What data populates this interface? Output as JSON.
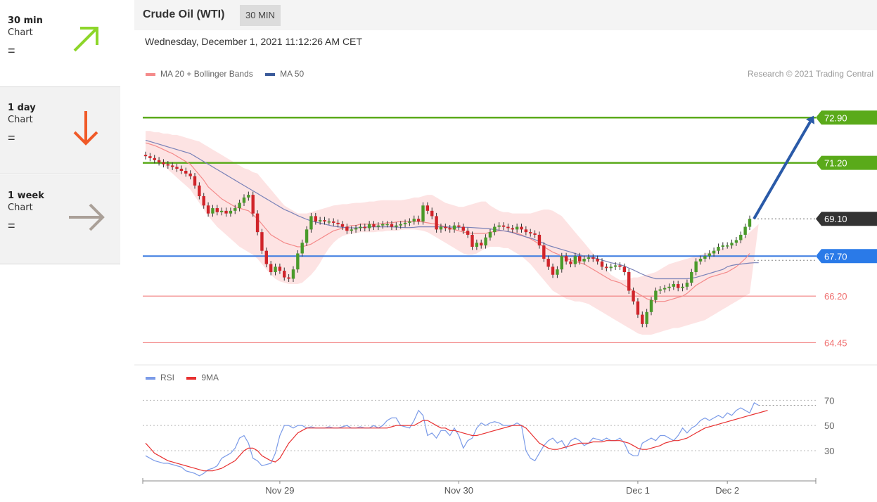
{
  "timeframes": [
    {
      "title": "30 min",
      "subtitle": "Chart",
      "sign": "=",
      "arrow": "up-right",
      "color": "#8dd62a"
    },
    {
      "title": "1 day",
      "subtitle": "Chart",
      "sign": "=",
      "arrow": "down",
      "color": "#f05a28"
    },
    {
      "title": "1 week",
      "subtitle": "Chart",
      "sign": "=",
      "arrow": "right",
      "color": "#aaa098"
    }
  ],
  "header": {
    "title": "Crude Oil (WTI)",
    "timeframe": "30 MIN"
  },
  "datetime": "Wednesday, December 1, 2021 11:12:26 AM CET",
  "credit": "Research © 2021 Trading Central",
  "colors": {
    "up": "#4a9a2a",
    "down": "#d0242a",
    "band": "#fde0e0",
    "ma20": "#f48a8a",
    "ma50": "#7a82b8",
    "resistance": "#5aaa1a",
    "pivot": "#3a7ae0",
    "support": "#f07070",
    "rsi": "#7b9be8",
    "rsi_ma": "#e83030"
  },
  "chart_data": [
    {
      "type": "candlestick",
      "title": "Crude Oil (WTI)",
      "legend": [
        {
          "name": "MA 20 + Bollinger Bands",
          "color": "#f48a8a"
        },
        {
          "name": "MA 50",
          "color": "#3a5a9a"
        }
      ],
      "ylim": [
        63.8,
        74.2
      ],
      "x_ticks": [
        {
          "label": "Nov 29",
          "index": 30
        },
        {
          "label": "Nov 30",
          "index": 70
        },
        {
          "label": "Dec 1",
          "index": 110
        },
        {
          "label": "Dec 2",
          "index": 130
        }
      ],
      "close": [
        71.45,
        71.38,
        71.3,
        71.22,
        71.15,
        71.1,
        71.05,
        70.98,
        70.9,
        70.8,
        70.7,
        70.35,
        69.95,
        69.6,
        69.3,
        69.5,
        69.35,
        69.4,
        69.3,
        69.4,
        69.5,
        69.7,
        69.9,
        70.0,
        69.3,
        68.6,
        67.9,
        67.4,
        67.1,
        67.3,
        67.15,
        66.9,
        66.85,
        67.2,
        67.8,
        68.2,
        68.7,
        69.2,
        69.0,
        69.05,
        69.0,
        69.0,
        68.95,
        68.9,
        68.8,
        68.65,
        68.7,
        68.75,
        68.8,
        68.75,
        68.9,
        68.8,
        68.85,
        68.9,
        68.9,
        68.8,
        68.85,
        68.9,
        68.95,
        69.0,
        69.1,
        69.0,
        69.6,
        69.4,
        69.2,
        68.7,
        68.8,
        68.75,
        68.7,
        68.85,
        68.8,
        68.65,
        68.5,
        68.05,
        68.2,
        68.1,
        68.4,
        68.6,
        68.8,
        68.85,
        68.8,
        68.75,
        68.7,
        68.8,
        68.7,
        68.6,
        68.55,
        68.5,
        68.1,
        67.6,
        67.3,
        67.0,
        67.2,
        67.7,
        67.5,
        67.4,
        67.7,
        67.5,
        67.6,
        67.65,
        67.6,
        67.5,
        67.3,
        67.25,
        67.3,
        67.35,
        67.3,
        67.1,
        66.4,
        66.0,
        65.5,
        65.15,
        65.6,
        66.05,
        66.4,
        66.45,
        66.5,
        66.55,
        66.65,
        66.5,
        66.55,
        66.7,
        67.1,
        67.5,
        67.6,
        67.7,
        67.8,
        67.9,
        68.05,
        68.1,
        68.1,
        68.2,
        68.3,
        68.5,
        68.8,
        69.1
      ],
      "ma20": [
        71.95,
        71.9,
        71.85,
        71.78,
        71.7,
        71.62,
        71.55,
        71.45,
        71.35,
        71.25,
        71.15,
        70.95,
        70.75,
        70.55,
        70.3,
        70.15,
        70.0,
        69.85,
        69.75,
        69.65,
        69.55,
        69.5,
        69.45,
        69.4,
        69.25,
        69.1,
        68.9,
        68.7,
        68.5,
        68.4,
        68.3,
        68.2,
        68.15,
        68.1,
        68.05,
        68.05,
        68.1,
        68.15,
        68.25,
        68.35,
        68.45,
        68.55,
        68.65,
        68.7,
        68.75,
        68.8,
        68.85,
        68.85,
        68.9,
        68.9,
        68.9,
        68.9,
        68.9,
        68.92,
        68.95,
        68.95,
        68.98,
        69.0,
        69.0,
        69.0,
        69.0,
        69.0,
        68.98,
        68.95,
        68.92,
        68.9,
        68.85,
        68.8,
        68.75,
        68.7,
        68.65,
        68.6,
        68.58,
        68.55,
        68.55,
        68.55,
        68.55,
        68.6,
        68.62,
        68.65,
        68.65,
        68.62,
        68.6,
        68.55,
        68.5,
        68.42,
        68.35,
        68.25,
        68.15,
        68.05,
        67.95,
        67.85,
        67.78,
        67.7,
        67.62,
        67.55,
        67.5,
        67.45,
        67.4,
        67.3,
        67.2,
        67.1,
        67.0,
        66.9,
        66.8,
        66.75,
        66.7,
        66.6,
        66.5,
        66.4,
        66.3,
        66.2,
        66.1,
        66.05,
        66.0,
        66.0,
        66.0,
        66.05,
        66.1,
        66.15,
        66.2,
        66.3,
        66.45,
        66.6,
        66.7,
        66.8,
        66.9,
        66.95,
        67.0,
        67.05,
        67.1,
        67.2,
        67.3,
        67.45,
        67.6,
        67.8
      ],
      "upper_band": [
        72.4,
        72.4,
        72.35,
        72.35,
        72.3,
        72.3,
        72.25,
        72.25,
        72.2,
        72.15,
        72.1,
        72.05,
        72.0,
        71.9,
        71.8,
        71.7,
        71.6,
        71.5,
        71.4,
        71.3,
        71.2,
        71.1,
        71.0,
        70.95,
        70.85,
        70.8,
        70.6,
        70.4,
        70.2,
        70.0,
        69.8,
        69.6,
        69.5,
        69.4,
        69.3,
        69.3,
        69.3,
        69.35,
        69.4,
        69.45,
        69.5,
        69.55,
        69.6,
        69.62,
        69.65,
        69.65,
        69.68,
        69.7,
        69.7,
        69.72,
        69.75,
        69.75,
        69.78,
        69.8,
        69.8,
        69.8,
        69.8,
        69.8,
        69.82,
        69.85,
        69.9,
        69.9,
        69.95,
        70.0,
        70.0,
        69.9,
        69.8,
        69.7,
        69.65,
        69.6,
        69.55,
        69.55,
        69.6,
        69.65,
        69.7,
        69.75,
        69.75,
        69.6,
        69.5,
        69.4,
        69.35,
        69.35,
        69.3,
        69.3,
        69.3,
        69.3,
        69.3,
        69.35,
        69.4,
        69.45,
        69.45,
        69.4,
        69.3,
        69.2,
        69.0,
        68.8,
        68.6,
        68.4,
        68.2,
        68.0,
        67.8,
        67.6,
        67.4,
        67.2,
        67.0,
        66.9,
        66.8,
        66.8,
        66.85,
        66.9,
        66.9,
        66.95,
        67.0,
        67.05,
        67.1,
        67.2,
        67.3,
        67.4,
        67.45,
        67.5,
        67.55,
        67.6,
        67.65,
        67.7,
        67.75,
        67.8,
        67.85,
        67.9,
        67.95,
        68.0,
        68.05,
        68.1,
        68.2,
        68.3,
        68.45,
        68.6,
        68.75,
        68.9
      ],
      "lower_band": [
        71.5,
        71.45,
        71.35,
        71.25,
        71.1,
        70.95,
        70.8,
        70.65,
        70.5,
        70.35,
        70.2,
        69.95,
        69.7,
        69.45,
        69.2,
        69.0,
        68.8,
        68.65,
        68.5,
        68.35,
        68.2,
        68.05,
        67.95,
        67.85,
        67.75,
        67.6,
        67.4,
        67.2,
        67.0,
        66.85,
        66.75,
        66.7,
        66.65,
        66.65,
        66.65,
        66.7,
        66.85,
        67.0,
        67.2,
        67.45,
        67.75,
        68.0,
        68.2,
        68.35,
        68.45,
        68.5,
        68.55,
        68.55,
        68.6,
        68.6,
        68.6,
        68.6,
        68.62,
        68.62,
        68.65,
        68.65,
        68.65,
        68.68,
        68.7,
        68.7,
        68.7,
        68.68,
        68.65,
        68.6,
        68.5,
        68.4,
        68.3,
        68.2,
        68.1,
        68.0,
        67.9,
        67.8,
        67.75,
        67.75,
        67.8,
        67.9,
        68.0,
        68.05,
        68.05,
        68.05,
        68.0,
        68.0,
        67.9,
        67.8,
        67.7,
        67.55,
        67.4,
        67.2,
        67.0,
        66.8,
        66.6,
        66.4,
        66.3,
        66.2,
        66.1,
        66.05,
        66.0,
        66.0,
        65.95,
        65.9,
        65.8,
        65.7,
        65.6,
        65.5,
        65.4,
        65.3,
        65.2,
        65.1,
        65.0,
        64.9,
        64.8,
        64.75,
        64.75,
        64.75,
        64.8,
        64.85,
        64.9,
        64.95,
        65.0,
        65.0,
        65.05,
        65.1,
        65.15,
        65.2,
        65.25,
        65.3,
        65.4,
        65.5,
        65.6,
        65.7,
        65.8,
        65.9,
        66.0,
        66.1,
        66.2,
        66.3,
        66.4,
        66.5
      ],
      "ma50": [
        72.05,
        72.0,
        71.95,
        71.9,
        71.85,
        71.8,
        71.75,
        71.7,
        71.65,
        71.6,
        71.55,
        71.45,
        71.35,
        71.25,
        71.15,
        71.05,
        70.95,
        70.85,
        70.75,
        70.65,
        70.55,
        70.45,
        70.35,
        70.25,
        70.15,
        70.05,
        69.95,
        69.85,
        69.75,
        69.65,
        69.55,
        69.45,
        69.38,
        69.3,
        69.22,
        69.15,
        69.08,
        69.02,
        68.98,
        68.94,
        68.9,
        68.86,
        68.82,
        68.8,
        68.78,
        68.77,
        68.76,
        68.76,
        68.77,
        68.78,
        68.8,
        68.8,
        68.8,
        68.8,
        68.8,
        68.8,
        68.79,
        68.78,
        68.77,
        68.77,
        68.78,
        68.8,
        68.8,
        68.8,
        68.8,
        68.8,
        68.8,
        68.8,
        68.79,
        68.79,
        68.78,
        68.78,
        68.78,
        68.77,
        68.76,
        68.75,
        68.74,
        68.72,
        68.7,
        68.67,
        68.65,
        68.62,
        68.58,
        68.52,
        68.47,
        68.42,
        68.38,
        68.32,
        68.25,
        68.18,
        68.1,
        68.05,
        68.0,
        67.95,
        67.9,
        67.85,
        67.8,
        67.75,
        67.7,
        67.68,
        67.65,
        67.6,
        67.55,
        67.5,
        67.45,
        67.42,
        67.38,
        67.33,
        67.25,
        67.18,
        67.1,
        67.02,
        66.95,
        66.9,
        66.85,
        66.85,
        66.85,
        66.85,
        66.85,
        66.85,
        66.85,
        66.85,
        66.87,
        66.9,
        66.95,
        67.0,
        67.05,
        67.1,
        67.15,
        67.2,
        67.3,
        67.35,
        67.38,
        67.4,
        67.42,
        67.44,
        67.45,
        67.45
      ],
      "levels": [
        {
          "label": "72.90",
          "value": 72.9,
          "kind": "resistance"
        },
        {
          "label": "71.20",
          "value": 71.2,
          "kind": "resistance"
        },
        {
          "label": "69.10",
          "value": 69.1,
          "kind": "last"
        },
        {
          "label": "67.70",
          "value": 67.7,
          "kind": "pivot"
        },
        {
          "label": "66.20",
          "value": 66.2,
          "kind": "support"
        },
        {
          "label": "64.45",
          "value": 64.45,
          "kind": "support"
        }
      ],
      "forecast_target": 72.9
    },
    {
      "type": "line",
      "title": "RSI",
      "legend": [
        {
          "name": "RSI",
          "color": "#7b9be8"
        },
        {
          "name": "9MA",
          "color": "#e83030"
        }
      ],
      "ylim": [
        6,
        78
      ],
      "y_ticks": [
        70,
        50,
        30
      ],
      "rsi": [
        26,
        24,
        22,
        21,
        20,
        20,
        19,
        18,
        17,
        14,
        13,
        12,
        10,
        12,
        15,
        16,
        18,
        24,
        26,
        28,
        32,
        40,
        42,
        36,
        24,
        22,
        18,
        19,
        20,
        28,
        42,
        50,
        50,
        48,
        50,
        50,
        48,
        49,
        48,
        48,
        48,
        49,
        48,
        48,
        49,
        50,
        48,
        48,
        49,
        48,
        48,
        50,
        48,
        50,
        54,
        56,
        56,
        50,
        49,
        48,
        54,
        62,
        58,
        42,
        44,
        40,
        46,
        46,
        42,
        48,
        42,
        32,
        38,
        40,
        48,
        52,
        50,
        52,
        53,
        52,
        50,
        50,
        50,
        52,
        50,
        30,
        24,
        22,
        28,
        34,
        38,
        40,
        36,
        38,
        32,
        38,
        40,
        38,
        34,
        36,
        40,
        39,
        38,
        40,
        38,
        38,
        40,
        36,
        28,
        26,
        26,
        36,
        38,
        40,
        38,
        42,
        42,
        40,
        38,
        42,
        48,
        44,
        48,
        50,
        54,
        56,
        54,
        56,
        58,
        56,
        60,
        58,
        62,
        64,
        62,
        60,
        68,
        66
      ],
      "rsi_ma": [
        36,
        32,
        28,
        26,
        24,
        22,
        21,
        20,
        19,
        18,
        17,
        16,
        15,
        14,
        14,
        14,
        15,
        16,
        18,
        20,
        22,
        26,
        30,
        32,
        32,
        30,
        26,
        24,
        22,
        21,
        24,
        30,
        36,
        40,
        44,
        46,
        48,
        48,
        48,
        48,
        48,
        48,
        48,
        48,
        48,
        48,
        48,
        48,
        48,
        48,
        48,
        48,
        48,
        48,
        48,
        49,
        50,
        50,
        50,
        50,
        50,
        52,
        54,
        54,
        52,
        50,
        48,
        48,
        46,
        46,
        45,
        44,
        43,
        42,
        42,
        43,
        44,
        45,
        46,
        47,
        48,
        49,
        50,
        50,
        50,
        48,
        44,
        40,
        36,
        34,
        32,
        31,
        31,
        32,
        33,
        34,
        35,
        36,
        36,
        36,
        37,
        37,
        37,
        38,
        38,
        38,
        38,
        37,
        36,
        34,
        32,
        31,
        31,
        32,
        33,
        34,
        36,
        37,
        38,
        38,
        39,
        40,
        42,
        44,
        46,
        48,
        49,
        50,
        51,
        52,
        53,
        54,
        55,
        56,
        57,
        58,
        59,
        60,
        61,
        62
      ]
    }
  ]
}
